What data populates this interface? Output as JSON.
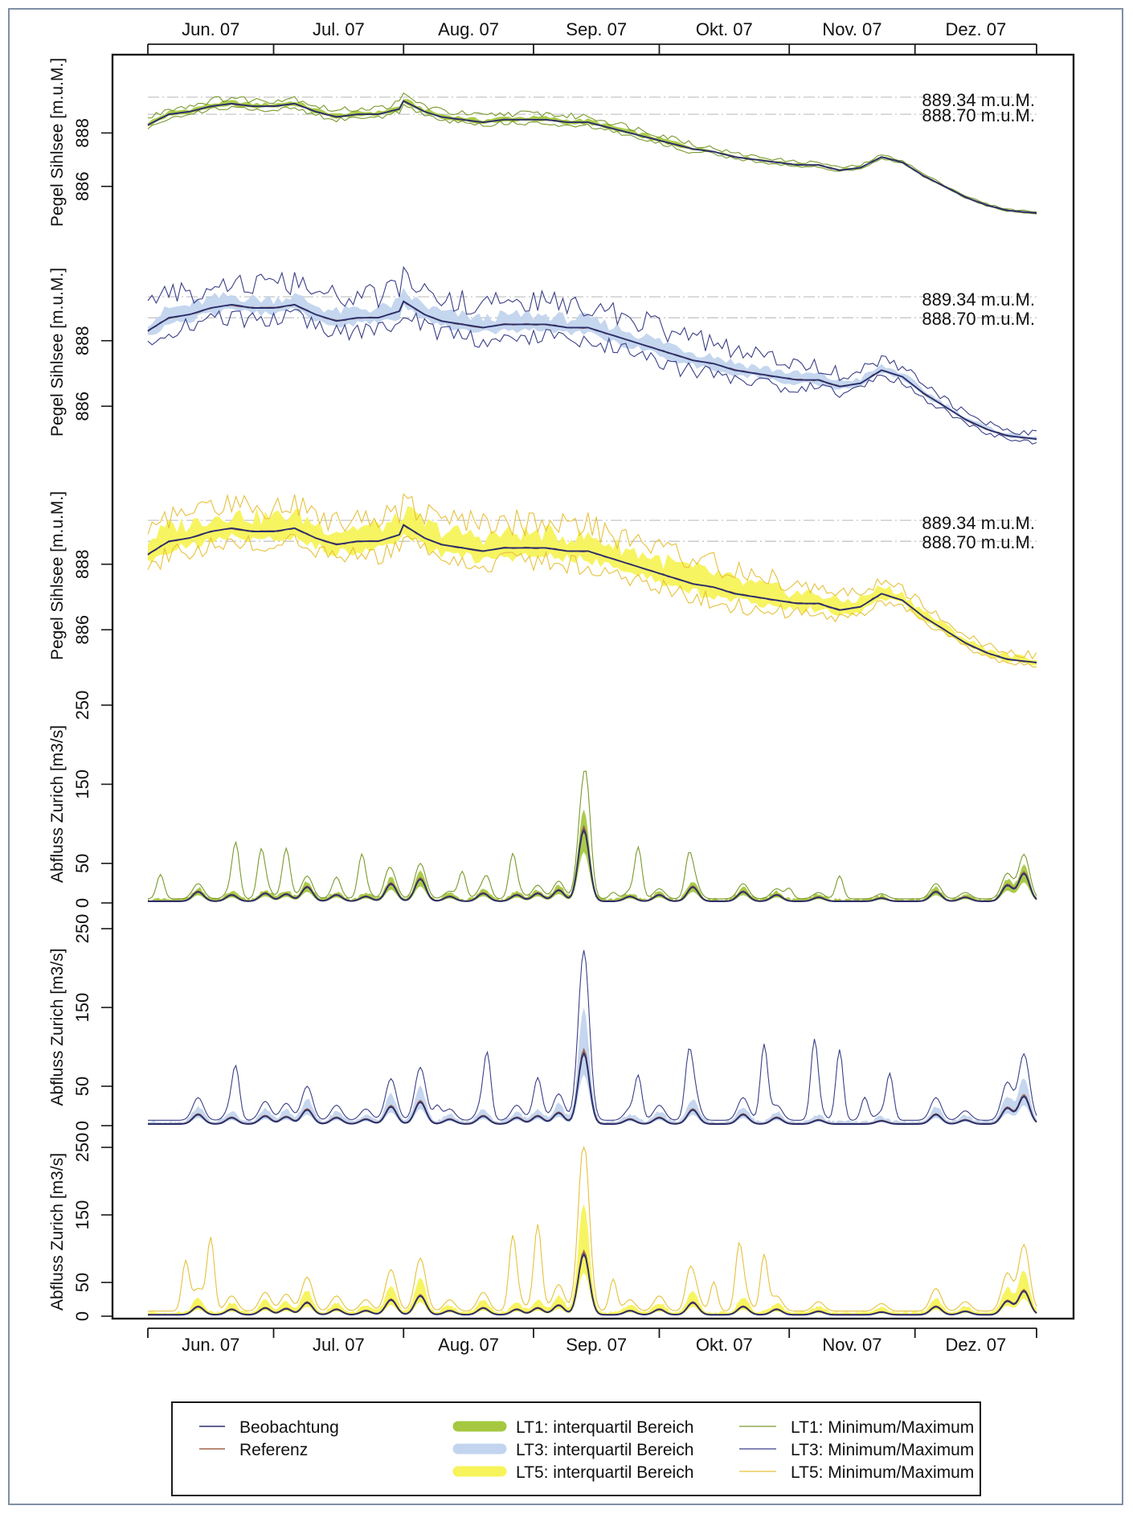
{
  "chart_data": {
    "type": "line",
    "months": [
      "Jun. 07",
      "Jul. 07",
      "Aug. 07",
      "Sep. 07",
      "Okt. 07",
      "Nov. 07",
      "Dez. 07"
    ],
    "reference_lines": [
      "889.34 m.u.M.",
      "888.70 m.u.M."
    ],
    "reference_values": [
      889.34,
      888.7
    ],
    "level_panels": [
      {
        "ylabel": "Pegel Sihlsee [m.u.M.]",
        "yticks": [
          886,
          888
        ],
        "ylim": [
          885,
          890.3
        ],
        "variant": "LT1",
        "spread": 0.12,
        "mm_spread": 0.25,
        "mm_end": 0.55
      },
      {
        "ylabel": "Pegel Sihlsee [m.u.M.]",
        "yticks": [
          886,
          888
        ],
        "ylim": [
          885,
          890.3
        ],
        "variant": "LT3",
        "spread": 0.35,
        "mm_spread": 0.75,
        "mm_end": 0.85
      },
      {
        "ylabel": "Pegel Sihlsee [m.u.M.]",
        "yticks": [
          886,
          888
        ],
        "ylim": [
          885,
          890.3
        ],
        "variant": "LT5",
        "spread": 0.55,
        "mm_spread": 0.85,
        "mm_end": 0.9
      }
    ],
    "flow_panels": [
      {
        "ylabel": "Abfluss Zurich [m3/s]",
        "yticks": [
          0,
          50,
          150,
          250
        ],
        "ylim": [
          0,
          250
        ],
        "variant": "LT1",
        "iqr_scale": 1.25,
        "max_scale": 1.6
      },
      {
        "ylabel": "Abfluss Zurich [m3/s]",
        "yticks": [
          0,
          50,
          150,
          250
        ],
        "ylim": [
          0,
          250
        ],
        "variant": "LT3",
        "iqr_scale": 1.6,
        "max_scale": 2.4
      },
      {
        "ylabel": "Abfluss Zurich [m3/s]",
        "yticks": [
          0,
          50,
          150,
          250
        ],
        "ylim": [
          0,
          250
        ],
        "variant": "LT5",
        "iqr_scale": 1.8,
        "max_scale": 2.8
      }
    ],
    "level_series": {
      "name": "Beobachtung",
      "x_day": [
        0,
        5,
        10,
        15,
        20,
        25,
        30,
        35,
        40,
        45,
        50,
        55,
        60,
        61,
        66,
        70,
        75,
        80,
        85,
        90,
        95,
        100,
        105,
        110,
        115,
        120,
        125,
        130,
        135,
        140,
        145,
        150,
        155,
        160,
        165,
        170,
        175,
        180,
        185,
        190,
        195,
        200,
        205,
        212
      ],
      "values": [
        888.3,
        888.7,
        888.8,
        889.0,
        889.1,
        889.0,
        889.0,
        889.1,
        888.8,
        888.6,
        888.7,
        888.7,
        888.9,
        889.2,
        888.8,
        888.6,
        888.5,
        888.4,
        888.5,
        888.5,
        888.5,
        888.4,
        888.4,
        888.2,
        888.0,
        887.8,
        887.6,
        887.4,
        887.3,
        887.1,
        887.0,
        886.9,
        886.8,
        886.8,
        886.6,
        886.7,
        887.1,
        886.9,
        886.4,
        886.0,
        885.6,
        885.3,
        885.1,
        885.0
      ]
    },
    "flow_series": {
      "name": "Beobachtung",
      "baseline": 2,
      "peaks": [
        {
          "day": 12,
          "value": 12
        },
        {
          "day": 20,
          "value": 8
        },
        {
          "day": 28,
          "value": 10
        },
        {
          "day": 33,
          "value": 9
        },
        {
          "day": 38,
          "value": 18
        },
        {
          "day": 45,
          "value": 8
        },
        {
          "day": 52,
          "value": 6
        },
        {
          "day": 58,
          "value": 22
        },
        {
          "day": 65,
          "value": 28
        },
        {
          "day": 72,
          "value": 6
        },
        {
          "day": 80,
          "value": 10
        },
        {
          "day": 88,
          "value": 8
        },
        {
          "day": 93,
          "value": 10
        },
        {
          "day": 98,
          "value": 14
        },
        {
          "day": 104,
          "value": 90
        },
        {
          "day": 115,
          "value": 6
        },
        {
          "day": 122,
          "value": 8
        },
        {
          "day": 130,
          "value": 18
        },
        {
          "day": 142,
          "value": 12
        },
        {
          "day": 150,
          "value": 8
        },
        {
          "day": 160,
          "value": 5
        },
        {
          "day": 175,
          "value": 4
        },
        {
          "day": 188,
          "value": 12
        },
        {
          "day": 195,
          "value": 5
        },
        {
          "day": 205,
          "value": 20
        },
        {
          "day": 209,
          "value": 35
        }
      ]
    },
    "legend": {
      "obs": "Beobachtung",
      "ref": "Referenz",
      "iqr": [
        "LT1: interquartil Bereich",
        "LT3: interquartil Bereich",
        "LT5: interquartil Bereich"
      ],
      "mm": [
        "LT1: Minimum/Maximum",
        "LT3: Minimum/Maximum",
        "LT5: Minimum/Maximum"
      ]
    },
    "colors": {
      "obs": "#2a2f6a",
      "ref": "#a0624a",
      "LT1_iqr": "#a5c840",
      "LT1_mm": "#7a9a2e",
      "LT3_iqr": "#c2d4ee",
      "LT3_mm": "#3b3f86",
      "LT5_iqr": "#f7f35a",
      "LT5_mm": "#e6c13c",
      "axes": "#1a1a1a",
      "refline": "#b8b8b8"
    }
  }
}
